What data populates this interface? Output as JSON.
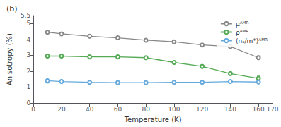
{
  "chart_data": {
    "type": "line",
    "title": "(b)",
    "xlabel": "Temperature (K)",
    "ylabel": "Anisotropy (%)",
    "x": [
      10,
      20,
      40,
      60,
      80,
      100,
      120,
      140,
      160
    ],
    "series": [
      {
        "name": "μᴬᴹᴿ",
        "color": "#888888",
        "marker": "open_circle",
        "values": [
          4.45,
          4.35,
          4.2,
          4.1,
          3.95,
          3.85,
          3.65,
          3.55,
          2.85
        ],
        "errors": [
          0.1,
          0.08,
          0.08,
          0.08,
          0.08,
          0.08,
          0.1,
          0.1,
          0.12
        ]
      },
      {
        "name": "ρᴬᴹᴿ",
        "color": "#55aa55",
        "marker": "open_circle",
        "values": [
          2.95,
          2.95,
          2.9,
          2.9,
          2.85,
          2.55,
          2.3,
          1.85,
          1.55
        ],
        "errors": [
          0.1,
          0.1,
          0.1,
          0.1,
          0.1,
          0.1,
          0.1,
          0.12,
          0.15
        ]
      },
      {
        "name": "(nₛ/m*)ᴬᴹᴿ",
        "color": "#66aadd",
        "marker": "open_circle",
        "values": [
          1.4,
          1.35,
          1.3,
          1.28,
          1.28,
          1.3,
          1.3,
          1.35,
          1.32
        ],
        "errors": [
          0.15,
          0.12,
          0.1,
          0.1,
          0.1,
          0.1,
          0.1,
          0.1,
          0.1
        ]
      }
    ],
    "xlim": [
      0,
      170
    ],
    "ylim": [
      0,
      5.5
    ],
    "xticks": [
      0,
      20,
      40,
      60,
      80,
      100,
      120,
      140,
      160
    ],
    "yticks": [
      0,
      1,
      2,
      3,
      4,
      5
    ],
    "legend": "upper right",
    "grid": false
  }
}
